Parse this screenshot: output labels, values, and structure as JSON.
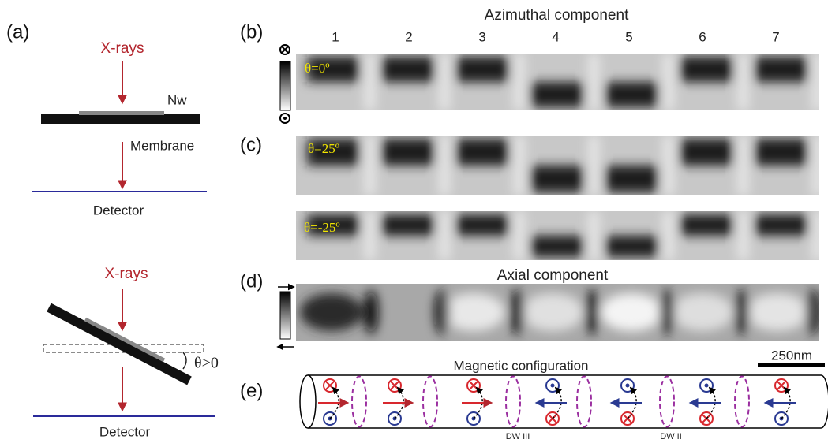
{
  "panel_labels": [
    "(a)",
    "(b)",
    "(c)",
    "(d)",
    "(e)"
  ],
  "setup": {
    "xrays": [
      "X-rays",
      "X-rays"
    ],
    "nw": "Nw",
    "membrane": "Membrane",
    "detector": [
      "Detector",
      "Detector"
    ],
    "angle": "θ>0"
  },
  "azimuthal": {
    "title": "Azimuthal component",
    "columns": [
      "1",
      "2",
      "3",
      "4",
      "5",
      "6",
      "7"
    ],
    "images": [
      "θ=0º",
      "θ=25º",
      "θ=-25º"
    ]
  },
  "axial": {
    "title": "Axial component"
  },
  "configuration": {
    "title": "Magnetic  configuration",
    "scale": "250nm",
    "walls": [
      "DW III",
      "DW II"
    ]
  }
}
